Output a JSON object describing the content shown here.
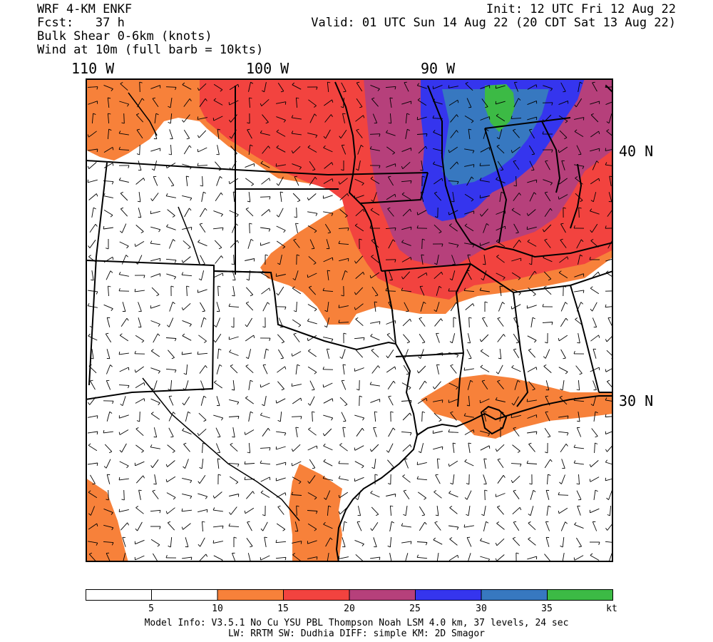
{
  "header": {
    "model": "WRF 4-KM ENKF",
    "fcst": "Fcst:   37 h",
    "field": "Bulk Shear 0-6km (knots)",
    "wind": "Wind at 10m (full barb = 10kts)",
    "init": "Init: 12 UTC Fri 12 Aug 22",
    "valid": "Valid: 01 UTC Sun 14 Aug 22 (20 CDT Sat 13 Aug 22)"
  },
  "axes": {
    "lon_labels": [
      "110 W",
      "100 W",
      "90 W"
    ],
    "lat_labels": [
      "40 N",
      "30 N"
    ]
  },
  "colorbar": {
    "bins": [
      {
        "color": "#ffffff"
      },
      {
        "color": "#ffffff"
      },
      {
        "color": "#f7813a"
      },
      {
        "color": "#f2433f"
      },
      {
        "color": "#b6407b"
      },
      {
        "color": "#3535ee"
      },
      {
        "color": "#3778c0"
      },
      {
        "color": "#3cba45"
      }
    ],
    "tick_labels": [
      "5",
      "10",
      "15",
      "20",
      "25",
      "30",
      "35"
    ],
    "unit": "kt"
  },
  "footer": {
    "line1": "Model Info: V3.5.1   No Cu   YSU PBL  Thompson    Noah LSM  4.0 km,  37 levels,   24 sec",
    "line2": "LW: RRTM SW: Dudhia  DIFF: simple KM: 2D Smagor"
  }
}
